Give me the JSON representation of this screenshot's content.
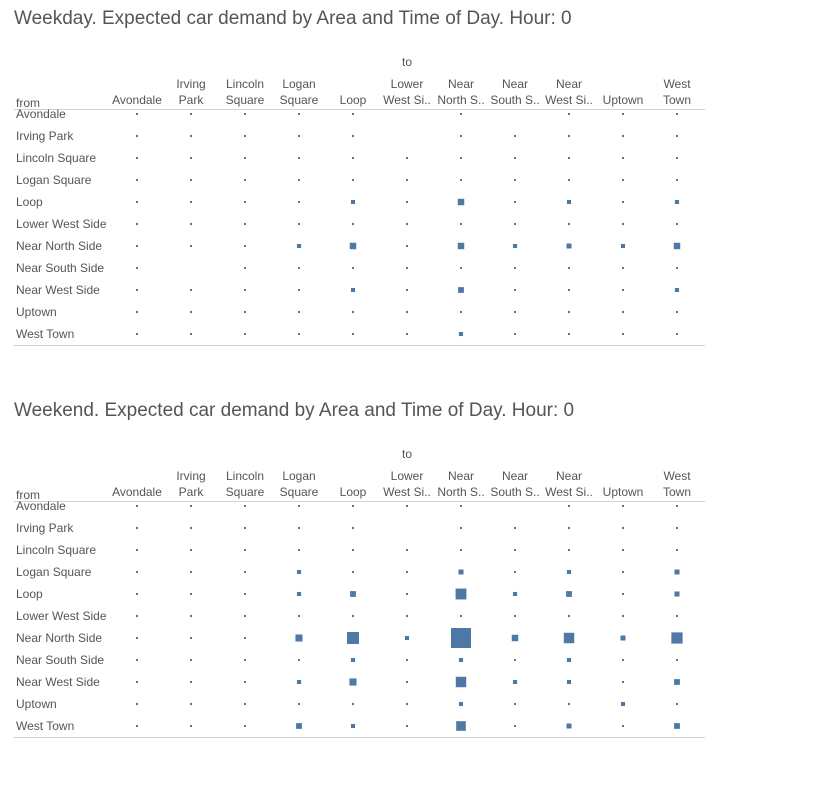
{
  "marks_color": "#4e79a7",
  "chart_data": [
    {
      "type": "heatmap",
      "title": "Weekday. Expected car demand by Area and Time of Day. Hour:  0",
      "column_header": "to",
      "row_header": "from",
      "columns": [
        "Avondale",
        "Irving\nPark",
        "Lincoln\nSquare",
        "Logan\nSquare",
        "Loop",
        "Lower\nWest Si..",
        "Near\nNorth S..",
        "Near\nSouth S..",
        "Near\nWest Si..",
        "Uptown",
        "West\nTown"
      ],
      "rows": [
        "Avondale",
        "Irving Park",
        "Lincoln Square",
        "Logan Square",
        "Loop",
        "Lower West Side",
        "Near North Side",
        "Near South Side",
        "Near West Side",
        "Uptown",
        "West Town"
      ],
      "values": [
        [
          1,
          1,
          1,
          1,
          1,
          0,
          1,
          0,
          1,
          1,
          1
        ],
        [
          1,
          1,
          1,
          1,
          1,
          0,
          1,
          1,
          1,
          1,
          1
        ],
        [
          1,
          1,
          1,
          1,
          1,
          1,
          1,
          1,
          1,
          1,
          1
        ],
        [
          1,
          1,
          1,
          1,
          1,
          1,
          1,
          1,
          1,
          1,
          1
        ],
        [
          1,
          1,
          1,
          1,
          2,
          1,
          5,
          1,
          2,
          1,
          2
        ],
        [
          1,
          1,
          1,
          1,
          1,
          1,
          1,
          1,
          1,
          1,
          1
        ],
        [
          1,
          1,
          1,
          2,
          5,
          1,
          5,
          2,
          3,
          2,
          5
        ],
        [
          1,
          0,
          1,
          1,
          1,
          1,
          1,
          1,
          1,
          1,
          1
        ],
        [
          1,
          1,
          1,
          1,
          2,
          1,
          4,
          1,
          1,
          1,
          2
        ],
        [
          1,
          1,
          1,
          1,
          1,
          1,
          1,
          1,
          1,
          1,
          1
        ],
        [
          1,
          1,
          1,
          1,
          1,
          1,
          2,
          1,
          1,
          1,
          1
        ]
      ]
    },
    {
      "type": "heatmap",
      "title": "Weekend. Expected car demand by Area and Time of Day. Hour:  0",
      "column_header": "to",
      "row_header": "from",
      "columns": [
        "Avondale",
        "Irving\nPark",
        "Lincoln\nSquare",
        "Logan\nSquare",
        "Loop",
        "Lower\nWest Si..",
        "Near\nNorth S..",
        "Near\nSouth S..",
        "Near\nWest Si..",
        "Uptown",
        "West\nTown"
      ],
      "rows": [
        "Avondale",
        "Irving Park",
        "Lincoln Square",
        "Logan Square",
        "Loop",
        "Lower West Side",
        "Near North Side",
        "Near South Side",
        "Near West Side",
        "Uptown",
        "West Town"
      ],
      "values": [
        [
          1,
          1,
          1,
          1,
          1,
          1,
          1,
          0,
          1,
          1,
          1
        ],
        [
          1,
          1,
          1,
          1,
          1,
          0,
          1,
          1,
          1,
          1,
          1
        ],
        [
          1,
          1,
          1,
          1,
          1,
          1,
          1,
          1,
          1,
          1,
          1
        ],
        [
          1,
          1,
          1,
          2,
          1,
          1,
          3,
          1,
          2,
          1,
          3
        ],
        [
          1,
          1,
          1,
          2,
          4,
          1,
          14,
          2,
          4,
          1,
          3
        ],
        [
          1,
          1,
          1,
          1,
          1,
          1,
          1,
          1,
          1,
          1,
          1
        ],
        [
          1,
          1,
          1,
          6,
          17,
          2,
          48,
          5,
          13,
          3,
          15
        ],
        [
          1,
          1,
          1,
          1,
          2,
          1,
          2,
          1,
          2,
          1,
          1
        ],
        [
          1,
          1,
          1,
          2,
          6,
          1,
          13,
          2,
          2,
          1,
          4
        ],
        [
          1,
          1,
          1,
          1,
          1,
          1,
          2,
          1,
          1,
          2,
          1
        ],
        [
          1,
          1,
          1,
          4,
          2,
          1,
          11,
          1,
          3,
          1,
          4
        ]
      ]
    }
  ]
}
